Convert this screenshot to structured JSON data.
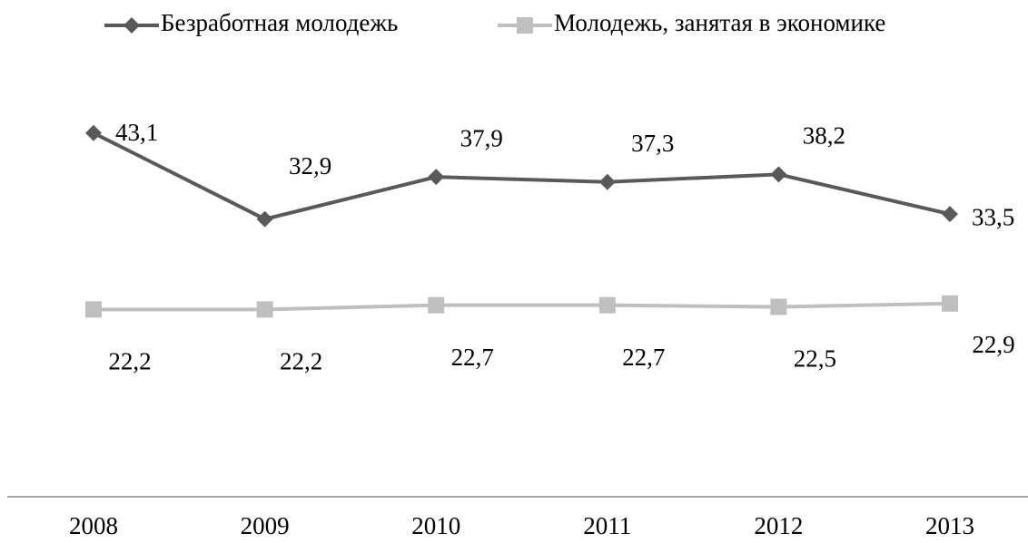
{
  "chart_data": {
    "type": "line",
    "categories": [
      "2008",
      "2009",
      "2010",
      "2011",
      "2012",
      "2013"
    ],
    "series": [
      {
        "name": "Безработная молодежь",
        "color": "#595959",
        "marker": "diamond",
        "values": [
          43.1,
          32.9,
          37.9,
          37.3,
          38.2,
          33.5
        ],
        "value_labels": [
          "43,1",
          "32,9",
          "37,9",
          "37,3",
          "38,2",
          "33,5"
        ]
      },
      {
        "name": "Молодежь, занятая в экономике",
        "color": "#bfbfbf",
        "marker": "square",
        "values": [
          22.2,
          22.2,
          22.7,
          22.7,
          22.5,
          22.9
        ],
        "value_labels": [
          "22,2",
          "22,2",
          "22,7",
          "22,7",
          "22,5",
          "22,9"
        ]
      }
    ],
    "ylim": [
      0,
      50
    ],
    "legend": "top"
  }
}
